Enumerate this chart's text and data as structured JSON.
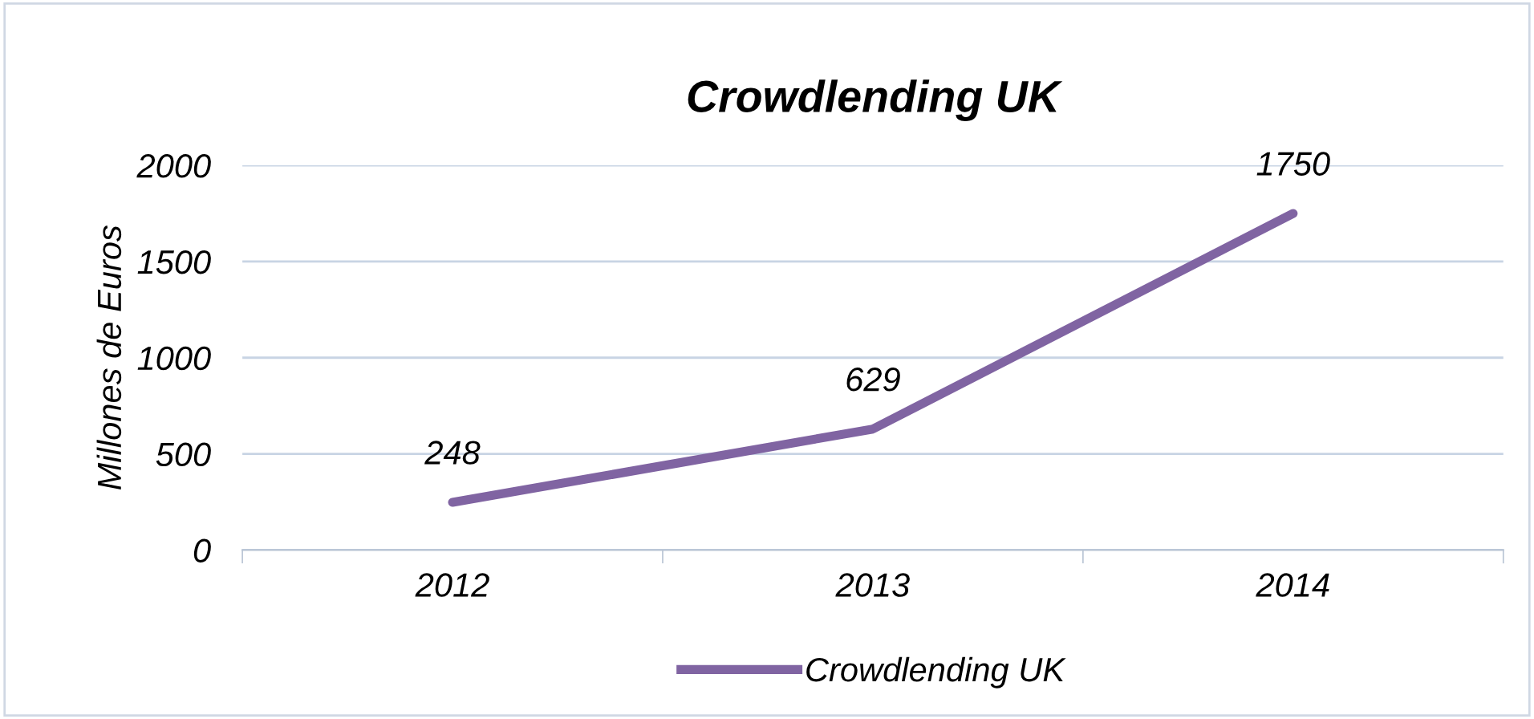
{
  "chart_data": {
    "type": "line",
    "title": "Crowdlending UK",
    "ylabel": "Millones de Euros",
    "categories": [
      "2012",
      "2013",
      "2014"
    ],
    "series": [
      {
        "name": "Crowdlending UK",
        "color": "#8064a2",
        "values": [
          248,
          629,
          1750
        ]
      }
    ],
    "ylim": [
      0,
      2000
    ],
    "yticks": [
      0,
      500,
      1000,
      1500,
      2000
    ],
    "grid": "y",
    "legend": "bottom",
    "data_labels": true,
    "marker": "none",
    "line_style": "solid"
  }
}
